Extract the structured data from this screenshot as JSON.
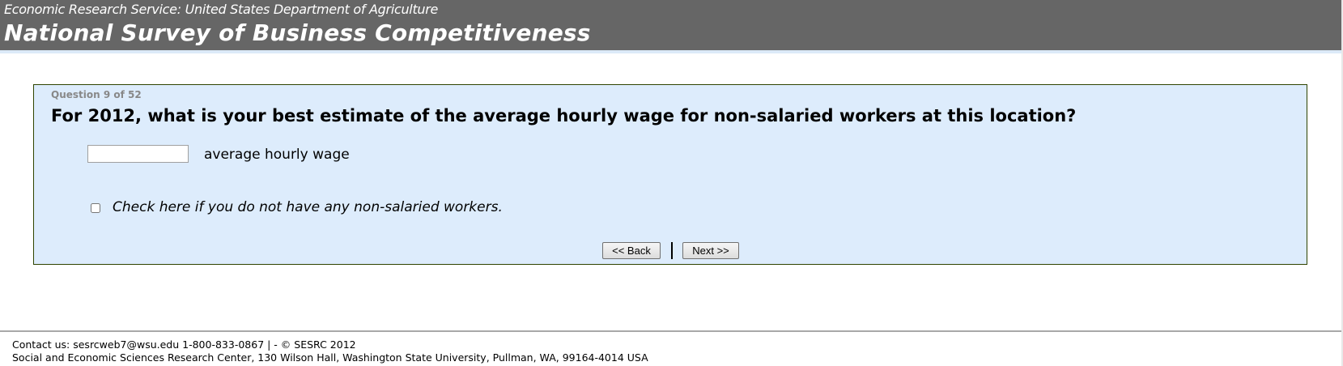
{
  "header": {
    "agency": "Economic Research Service: United States Department of Agriculture",
    "title": "National Survey of Business Competitiveness"
  },
  "question": {
    "number": "Question 9 of 52",
    "text": "For 2012, what is your best estimate of the average hourly wage for non-salaried workers at this location?",
    "wage_value": "",
    "wage_label": "average hourly wage",
    "checkbox_checked": false,
    "checkbox_label": "Check here if you do not have any non-salaried workers."
  },
  "nav": {
    "back_label": "<< Back",
    "next_label": "Next >>"
  },
  "footer": {
    "contact": "Contact us: sesrcweb7@wsu.edu 1-800-833-0867 | - © SESRC 2012",
    "address": "Social and Economic Sciences Research Center, 130 Wilson Hall, Washington State University, Pullman, WA, 99164-4014 USA"
  },
  "colors": {
    "header_bg": "#666666",
    "question_bg": "#ddecfc",
    "question_border": "#2f4400"
  }
}
